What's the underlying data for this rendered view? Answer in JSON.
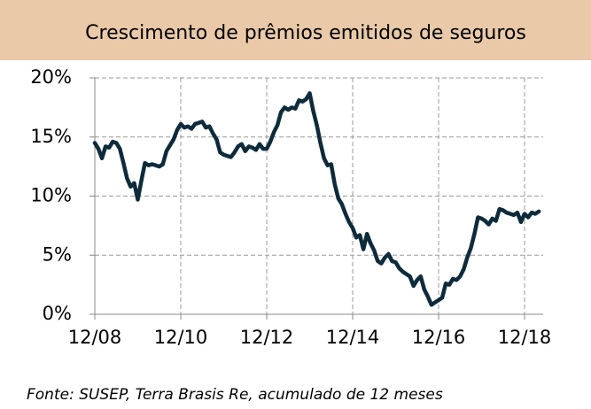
{
  "chart_data": {
    "type": "line",
    "title": "Crescimento de prêmios emitidos de seguros",
    "source": "Fonte: SUSEP, Terra Brasis Re, acumulado de 12 meses",
    "x": [
      "12/08",
      "01/09",
      "02/09",
      "03/09",
      "04/09",
      "05/09",
      "06/09",
      "07/09",
      "08/09",
      "09/09",
      "10/09",
      "11/09",
      "12/09",
      "01/10",
      "02/10",
      "03/10",
      "04/10",
      "05/10",
      "06/10",
      "07/10",
      "08/10",
      "09/10",
      "10/10",
      "11/10",
      "12/10",
      "01/11",
      "02/11",
      "03/11",
      "04/11",
      "05/11",
      "06/11",
      "07/11",
      "08/11",
      "09/11",
      "10/11",
      "11/11",
      "12/11",
      "01/12",
      "02/12",
      "03/12",
      "04/12",
      "05/12",
      "06/12",
      "07/12",
      "08/12",
      "09/12",
      "10/12",
      "11/12",
      "12/12",
      "01/13",
      "02/13",
      "03/13",
      "04/13",
      "05/13",
      "06/13",
      "07/13",
      "08/13",
      "09/13",
      "10/13",
      "11/13",
      "12/13",
      "01/14",
      "02/14",
      "03/14",
      "04/14",
      "05/14",
      "06/14",
      "07/14",
      "08/14",
      "09/14",
      "10/14",
      "11/14",
      "12/14",
      "01/15",
      "02/15",
      "03/15",
      "04/15",
      "05/15",
      "06/15",
      "07/15",
      "08/15",
      "09/15",
      "10/15",
      "11/15",
      "12/15",
      "01/16",
      "02/16",
      "03/16",
      "04/16",
      "05/16",
      "06/16",
      "07/16",
      "08/16",
      "09/16",
      "10/16",
      "11/16",
      "12/16",
      "01/17",
      "02/17",
      "03/17",
      "04/17",
      "05/17",
      "06/17",
      "07/17",
      "08/17",
      "09/17",
      "10/17",
      "11/17",
      "12/17",
      "01/18",
      "02/18",
      "03/18",
      "04/18",
      "05/18",
      "06/18",
      "07/18",
      "08/18",
      "09/18",
      "10/18",
      "11/18",
      "12/18",
      "01/19",
      "02/19",
      "03/19",
      "04/19"
    ],
    "series": [
      {
        "name": "Crescimento",
        "color": "#0e2b3c",
        "values": [
          14.5,
          14.0,
          13.2,
          14.2,
          14.1,
          14.6,
          14.5,
          14.0,
          12.8,
          11.5,
          10.8,
          11.1,
          9.7,
          11.3,
          12.8,
          12.6,
          12.7,
          12.6,
          12.5,
          12.7,
          13.8,
          14.3,
          14.8,
          15.6,
          16.1,
          15.8,
          15.9,
          15.7,
          16.1,
          16.2,
          16.3,
          15.8,
          15.9,
          15.3,
          14.8,
          13.7,
          13.5,
          13.4,
          13.3,
          13.7,
          14.2,
          14.4,
          13.8,
          14.2,
          14.1,
          13.9,
          14.4,
          14.0,
          14.0,
          14.6,
          15.4,
          16.0,
          17.1,
          17.5,
          17.3,
          17.5,
          17.4,
          18.1,
          18.0,
          18.2,
          18.7,
          17.2,
          16.0,
          14.5,
          13.2,
          12.6,
          12.7,
          11.0,
          9.8,
          9.3,
          8.5,
          7.8,
          7.3,
          6.5,
          6.7,
          5.5,
          6.8,
          6.0,
          5.4,
          4.5,
          4.3,
          4.8,
          5.1,
          4.5,
          4.4,
          3.9,
          3.6,
          3.4,
          3.2,
          2.4,
          2.9,
          3.2,
          2.1,
          1.5,
          0.8,
          1.0,
          1.2,
          1.4,
          2.6,
          2.5,
          3.0,
          2.9,
          3.2,
          3.8,
          4.8,
          5.6,
          6.8,
          8.2,
          8.1,
          7.9,
          7.6,
          8.1,
          7.9,
          8.9,
          8.8,
          8.6,
          8.5,
          8.4,
          8.6,
          7.8,
          8.5,
          8.2,
          8.6,
          8.5,
          8.7
        ]
      }
    ],
    "ylim": [
      0,
      20
    ],
    "yticks": [
      {
        "value": 0,
        "label": "0%"
      },
      {
        "value": 5,
        "label": "5%"
      },
      {
        "value": 10,
        "label": "10%"
      },
      {
        "value": 15,
        "label": "15%"
      },
      {
        "value": 20,
        "label": "20%"
      }
    ],
    "xticks": [
      "12/08",
      "12/10",
      "12/12",
      "12/14",
      "12/16",
      "12/18"
    ],
    "grid": true
  }
}
